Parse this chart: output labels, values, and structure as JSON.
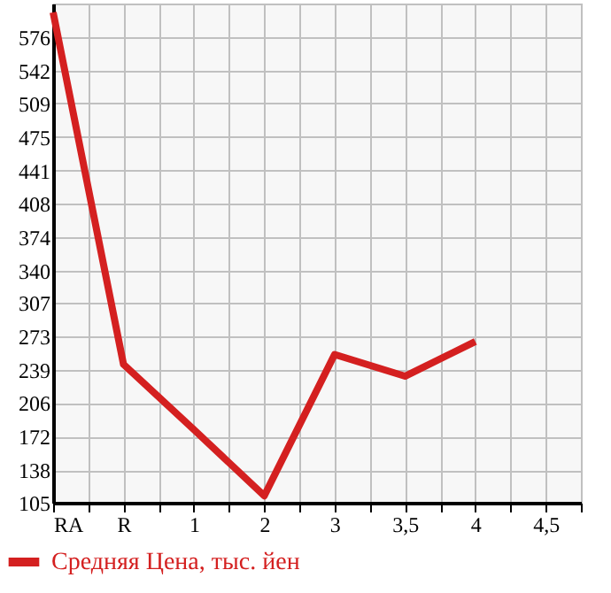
{
  "chart_data": {
    "type": "line",
    "categories": [
      "RA",
      "R",
      "1",
      "2",
      "3",
      "3,5",
      "4",
      "4,5"
    ],
    "series": [
      {
        "name": "Средняя Цена, тыс. йен",
        "color": "#d42020",
        "values": [
          601,
          245,
          179,
          112,
          255,
          233,
          268,
          null
        ]
      }
    ],
    "ylim": [
      105,
      610
    ],
    "yticks": [
      105,
      138,
      172,
      206,
      239,
      273,
      307,
      340,
      374,
      408,
      441,
      475,
      509,
      542,
      576
    ],
    "grid": true,
    "legend": "bottom left",
    "marker": "none",
    "line_style": "solid"
  }
}
